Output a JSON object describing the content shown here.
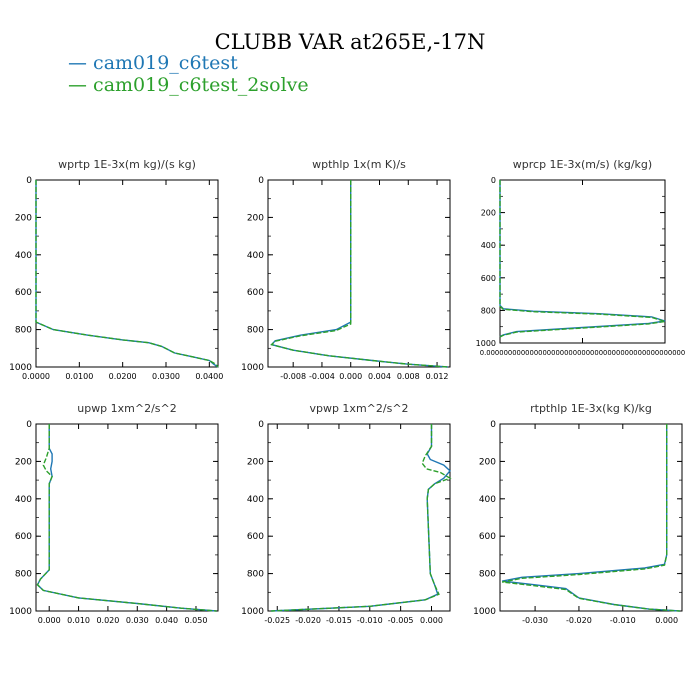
{
  "page": {
    "title": "CLUBB VAR at265E,-17N",
    "legend": [
      {
        "label": "cam019_c6test",
        "color": "#1f77b4"
      },
      {
        "label": "cam019_c6test_2solve",
        "color": "#2ca02c"
      }
    ]
  },
  "chart_data": [
    {
      "type": "line",
      "title": "wprtp  1E-3x(m kg)/(s kg)",
      "ylim": [
        0,
        1000
      ],
      "y_reversed": true,
      "xlim": [
        0.0,
        0.042
      ],
      "xticks": [
        0.0,
        0.01,
        0.02,
        0.03,
        0.04
      ],
      "xtick_labels": [
        "0.0000",
        "0.0100",
        "0.0200",
        "0.0300",
        "0.0400"
      ],
      "yticks": [
        0,
        200,
        400,
        600,
        800,
        1000
      ],
      "ytick_labels": [
        "0",
        "200",
        "400",
        "600",
        "800",
        "1000"
      ],
      "series": [
        {
          "color": "#1f77b4",
          "x": [
            0,
            0,
            0,
            0.004,
            0.012,
            0.02,
            0.026,
            0.029,
            0.032,
            0.036,
            0.04,
            0.041,
            0.042
          ],
          "y": [
            0,
            500,
            760,
            800,
            830,
            855,
            870,
            890,
            925,
            945,
            965,
            985,
            1000
          ]
        },
        {
          "color": "#2ca02c",
          "x": [
            0,
            0,
            0,
            0.004,
            0.012,
            0.02,
            0.026,
            0.029,
            0.032,
            0.036,
            0.04,
            0.0415,
            0.042
          ],
          "y": [
            0,
            500,
            760,
            800,
            830,
            855,
            870,
            890,
            925,
            945,
            965,
            985,
            1000
          ]
        }
      ]
    },
    {
      "type": "line",
      "title": "wpthlp  1x(m K)/s",
      "ylim": [
        0,
        1000
      ],
      "y_reversed": true,
      "xlim": [
        -0.0115,
        0.0138
      ],
      "xticks": [
        -0.008,
        -0.004,
        0.0,
        0.004,
        0.008,
        0.012
      ],
      "xtick_labels": [
        "-0.008",
        "-0.004",
        "0.000",
        "0.004",
        "0.008",
        "0.012"
      ],
      "yticks": [
        0,
        200,
        400,
        600,
        800,
        1000
      ],
      "ytick_labels": [
        "0",
        "200",
        "400",
        "600",
        "800",
        "1000"
      ],
      "series": [
        {
          "color": "#1f77b4",
          "x": [
            0,
            0,
            0,
            -0.002,
            -0.007,
            -0.0105,
            -0.011,
            -0.008,
            -0.003,
            0.003,
            0.008,
            0.0135
          ],
          "y": [
            0,
            400,
            760,
            800,
            830,
            860,
            880,
            910,
            940,
            965,
            985,
            1000
          ]
        },
        {
          "color": "#2ca02c",
          "x": [
            0,
            0,
            0,
            -0.002,
            -0.007,
            -0.0105,
            -0.011,
            -0.008,
            -0.003,
            0.003,
            0.008,
            0.0135
          ],
          "y": [
            0,
            400,
            770,
            805,
            833,
            862,
            880,
            910,
            940,
            965,
            985,
            1000
          ]
        }
      ]
    },
    {
      "type": "line",
      "title": "wprcp  1E-3x(m/s) (kg/kg)",
      "ylim": [
        0,
        1000
      ],
      "y_reversed": true,
      "xlim": [
        0,
        1
      ],
      "xticks": [
        0.5
      ],
      "xtick_labels": [
        "0.0000000000000000000000000000000000000000000000"
      ],
      "yticks": [
        0,
        200,
        400,
        600,
        800,
        1000
      ],
      "ytick_labels": [
        "0",
        "200",
        "400",
        "600",
        "800",
        "1000"
      ],
      "series": [
        {
          "color": "#1f77b4",
          "x": [
            0,
            0,
            0.02,
            0.2,
            0.6,
            0.92,
            1.0,
            0.9,
            0.5,
            0.1,
            0.02,
            0
          ],
          "y": [
            0,
            770,
            790,
            805,
            820,
            840,
            865,
            880,
            905,
            930,
            950,
            960
          ]
        },
        {
          "color": "#2ca02c",
          "x": [
            0,
            0,
            0.02,
            0.2,
            0.6,
            0.92,
            1.0,
            0.9,
            0.5,
            0.1,
            0.02,
            0
          ],
          "y": [
            0,
            775,
            793,
            808,
            823,
            843,
            868,
            883,
            908,
            933,
            953,
            963
          ]
        }
      ]
    },
    {
      "type": "line",
      "title": "upwp  1xm^2/s^2",
      "ylim": [
        0,
        1000
      ],
      "y_reversed": true,
      "xlim": [
        -0.0045,
        0.0575
      ],
      "xticks": [
        0.0,
        0.01,
        0.02,
        0.03,
        0.04,
        0.05
      ],
      "xtick_labels": [
        "0.000",
        "0.010",
        "0.020",
        "0.030",
        "0.040",
        "0.050"
      ],
      "yticks": [
        0,
        200,
        400,
        600,
        800,
        1000
      ],
      "ytick_labels": [
        "0",
        "200",
        "400",
        "600",
        "800",
        "1000"
      ],
      "series": [
        {
          "color": "#1f77b4",
          "x": [
            0,
            0,
            0.001,
            0.001,
            0.0005,
            0.001,
            0,
            0,
            -0.003,
            -0.004,
            -0.002,
            0.01,
            0.03,
            0.045,
            0.057
          ],
          "y": [
            0,
            130,
            160,
            200,
            240,
            280,
            320,
            780,
            830,
            860,
            890,
            930,
            960,
            985,
            1000
          ]
        },
        {
          "color": "#2ca02c",
          "x": [
            0,
            0,
            -0.001,
            -0.002,
            -0.001,
            0.001,
            0,
            0,
            -0.003,
            -0.004,
            -0.002,
            0.01,
            0.03,
            0.045,
            0.057
          ],
          "y": [
            0,
            130,
            180,
            220,
            250,
            280,
            320,
            780,
            830,
            860,
            890,
            930,
            960,
            985,
            1000
          ]
        }
      ]
    },
    {
      "type": "line",
      "title": "vpwp  1xm^2/s^2",
      "ylim": [
        0,
        1000
      ],
      "y_reversed": true,
      "xlim": [
        -0.0265,
        0.003
      ],
      "xticks": [
        -0.025,
        -0.02,
        -0.015,
        -0.01,
        -0.005,
        0.0
      ],
      "xtick_labels": [
        "-0.025",
        "-0.020",
        "-0.015",
        "-0.010",
        "-0.005",
        "0.000"
      ],
      "yticks": [
        0,
        200,
        400,
        600,
        800,
        1000
      ],
      "ytick_labels": [
        "0",
        "200",
        "400",
        "600",
        "800",
        "1000"
      ],
      "series": [
        {
          "color": "#1f77b4",
          "x": [
            0,
            0,
            -0.0007,
            -0.0002,
            0.002,
            0.003,
            0.002,
            0.0005,
            -0.0005,
            -0.0007,
            -0.0002,
            0.0005,
            0.001,
            -0.001,
            -0.01,
            -0.026
          ],
          "y": [
            0,
            120,
            160,
            190,
            220,
            250,
            290,
            320,
            350,
            400,
            800,
            860,
            910,
            940,
            975,
            1000
          ]
        },
        {
          "color": "#2ca02c",
          "x": [
            0,
            0,
            -0.001,
            -0.0015,
            -0.0008,
            0.0015,
            0.003,
            0.0005,
            -0.0005,
            -0.0007,
            -0.0002,
            0.0005,
            0.0012,
            -0.001,
            -0.01,
            -0.026
          ],
          "y": [
            0,
            120,
            170,
            210,
            240,
            260,
            290,
            320,
            350,
            400,
            800,
            860,
            910,
            940,
            975,
            1000
          ]
        }
      ]
    },
    {
      "type": "line",
      "title": "rtpthlp  1E-3x(kg K)/kg",
      "ylim": [
        0,
        1000
      ],
      "y_reversed": true,
      "xlim": [
        -0.038,
        0.0035
      ],
      "xticks": [
        -0.03,
        -0.02,
        -0.01,
        0.0
      ],
      "xtick_labels": [
        "-0.030",
        "-0.020",
        "-0.010",
        "0.000"
      ],
      "yticks": [
        0,
        200,
        400,
        600,
        800,
        1000
      ],
      "ytick_labels": [
        "0",
        "200",
        "400",
        "600",
        "800",
        "1000"
      ],
      "series": [
        {
          "color": "#1f77b4",
          "x": [
            0,
            0,
            -0.0005,
            -0.005,
            -0.02,
            -0.033,
            -0.0375,
            -0.03,
            -0.023,
            -0.02,
            -0.012,
            -0.004,
            0.003
          ],
          "y": [
            0,
            700,
            750,
            770,
            800,
            820,
            840,
            860,
            880,
            930,
            965,
            990,
            1000
          ]
        },
        {
          "color": "#2ca02c",
          "x": [
            0,
            0,
            -0.0005,
            -0.005,
            -0.02,
            -0.033,
            -0.0375,
            -0.03,
            -0.023,
            -0.02,
            -0.012,
            -0.004,
            0.003
          ],
          "y": [
            0,
            700,
            755,
            775,
            805,
            825,
            845,
            865,
            885,
            932,
            966,
            990,
            1000
          ]
        }
      ]
    }
  ]
}
